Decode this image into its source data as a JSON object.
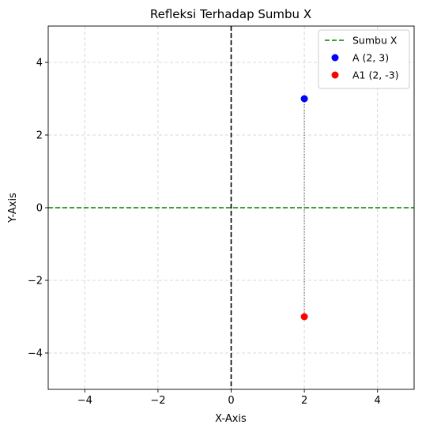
{
  "chart_data": {
    "type": "scatter",
    "title": "Refleksi Terhadap Sumbu X",
    "xlabel": "X-Axis",
    "ylabel": "Y-Axis",
    "xlim": [
      -5,
      5
    ],
    "ylim": [
      -5,
      5
    ],
    "xticks": [
      -4,
      -2,
      0,
      2,
      4
    ],
    "yticks": [
      -4,
      -2,
      0,
      2,
      4
    ],
    "grid": true,
    "legend_position": "top-right",
    "reference_lines": [
      {
        "name": "Sumbu X",
        "orientation": "horizontal",
        "value": 0,
        "color": "#008000",
        "style": "dashed",
        "in_legend": true
      },
      {
        "orientation": "vertical",
        "value": 0,
        "color": "#000000",
        "style": "dashed",
        "in_legend": false
      }
    ],
    "series": [
      {
        "name": "A (2, 3)",
        "x": [
          2
        ],
        "y": [
          3
        ],
        "color": "#0000ff"
      },
      {
        "name": "A1 (2, -3)",
        "x": [
          2
        ],
        "y": [
          -3
        ],
        "color": "#ff0000"
      }
    ],
    "connector": {
      "from": [
        2,
        3
      ],
      "to": [
        2,
        -3
      ],
      "color": "#808080",
      "style": "dotted"
    }
  }
}
